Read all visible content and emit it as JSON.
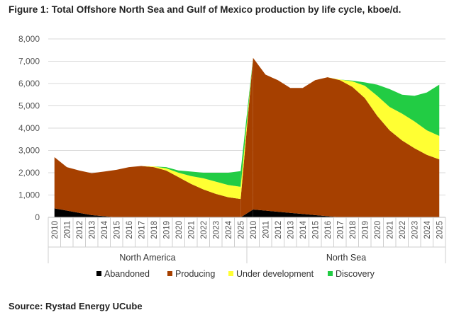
{
  "chart_data": {
    "type": "area",
    "title": "Figure 1: Total Offshore North Sea and Gulf of Mexico production by life cycle, kboe/d.",
    "source": "Source: Rystad Energy UCube",
    "ylim": [
      0,
      8000
    ],
    "yticks": [
      "0",
      "1,000",
      "2,000",
      "3,000",
      "4,000",
      "5,000",
      "6,000",
      "7,000",
      "8,000"
    ],
    "years": [
      "2010",
      "2011",
      "2012",
      "2013",
      "2014",
      "2015",
      "2016",
      "2017",
      "2018",
      "2019",
      "2020",
      "2021",
      "2022",
      "2023",
      "2024",
      "2025"
    ],
    "groups": [
      "North America",
      "North Sea"
    ],
    "colors": {
      "Abandoned": "#000000",
      "Producing": "#a64000",
      "Under development": "#ffff33",
      "Discovery": "#22cc44"
    },
    "panels": [
      {
        "group": "North America",
        "series": [
          {
            "name": "Abandoned",
            "values": [
              400,
              300,
              200,
              100,
              50,
              0,
              0,
              0,
              0,
              0,
              0,
              0,
              0,
              0,
              0,
              0
            ]
          },
          {
            "name": "Producing",
            "values": [
              2300,
              1950,
              1900,
              1880,
              2000,
              2130,
              2250,
              2300,
              2250,
              2100,
              1800,
              1500,
              1250,
              1050,
              900,
              820
            ]
          },
          {
            "name": "Under development",
            "values": [
              0,
              0,
              0,
              0,
              0,
              0,
              0,
              0,
              30,
              100,
              200,
              350,
              500,
              550,
              550,
              550
            ]
          },
          {
            "name": "Discovery",
            "values": [
              0,
              0,
              0,
              0,
              0,
              0,
              0,
              0,
              0,
              50,
              100,
              200,
              250,
              400,
              550,
              700
            ]
          }
        ]
      },
      {
        "group": "North Sea",
        "series": [
          {
            "name": "Abandoned",
            "values": [
              350,
              300,
              250,
              200,
              150,
              100,
              50,
              0,
              0,
              0,
              0,
              0,
              0,
              0,
              0,
              0
            ]
          },
          {
            "name": "Producing",
            "values": [
              6800,
              6100,
              5900,
              5600,
              5650,
              6050,
              6230,
              6150,
              5850,
              5350,
              4550,
              3900,
              3450,
              3100,
              2800,
              2600
            ]
          },
          {
            "name": "Under development",
            "values": [
              0,
              0,
              0,
              0,
              0,
              0,
              0,
              30,
              250,
              550,
              900,
              1050,
              1200,
              1200,
              1100,
              1050
            ]
          },
          {
            "name": "Discovery",
            "values": [
              0,
              0,
              0,
              0,
              0,
              0,
              0,
              0,
              30,
              150,
              500,
              800,
              850,
              1150,
              1700,
              2300
            ]
          }
        ]
      }
    ],
    "legend": [
      "Abandoned",
      "Producing",
      "Under development",
      "Discovery"
    ],
    "legend_position": "bottom"
  }
}
